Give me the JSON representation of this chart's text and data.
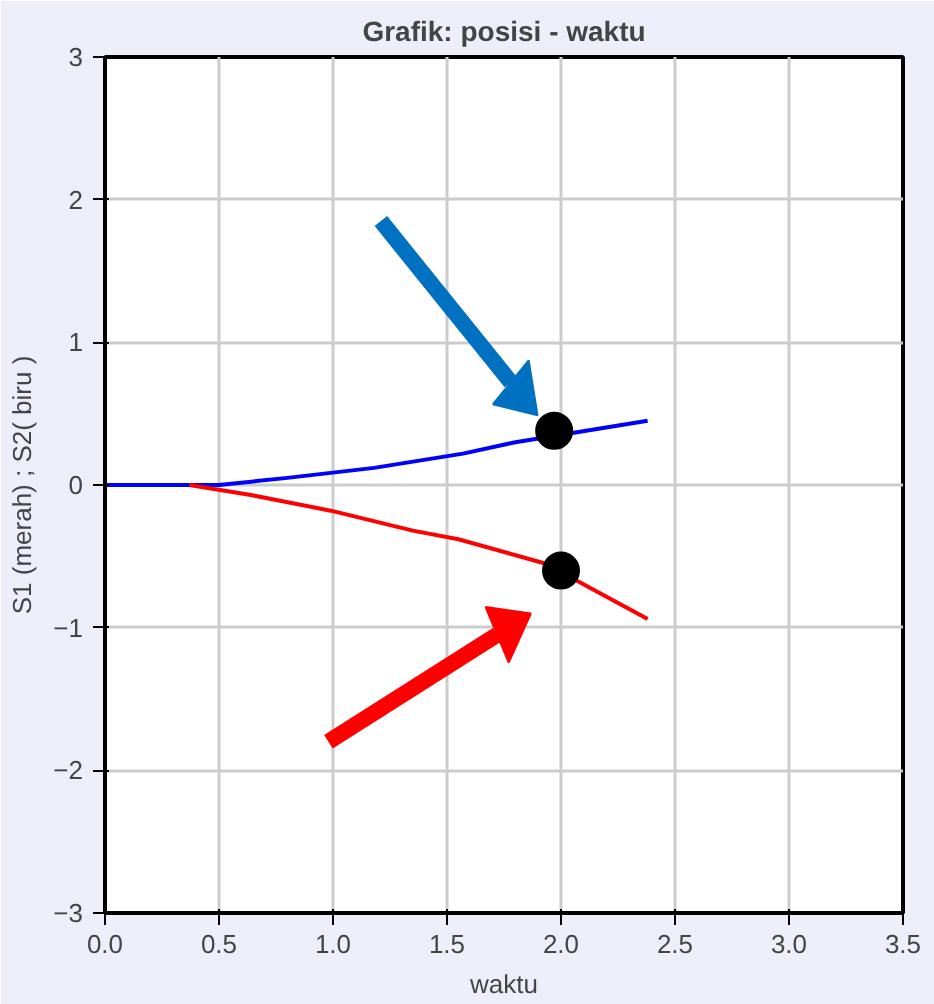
{
  "chart_data": {
    "type": "line",
    "title": "Grafik: posisi - waktu",
    "xlabel": "waktu",
    "ylabel": "S1 (merah) ; S2( biru )",
    "xlim": [
      0,
      3.5
    ],
    "ylim": [
      -3,
      3
    ],
    "xticks": [
      {
        "value": 0,
        "label": "0.0"
      },
      {
        "value": 0.5,
        "label": "0.5"
      },
      {
        "value": 1,
        "label": "1.0"
      },
      {
        "value": 1.5,
        "label": "1.5"
      },
      {
        "value": 2,
        "label": "2.0"
      },
      {
        "value": 2.5,
        "label": "2.5"
      },
      {
        "value": 3,
        "label": "3.0"
      },
      {
        "value": 3.5,
        "label": "3.5"
      }
    ],
    "yticks": [
      -3,
      -2,
      -1,
      0,
      1,
      2,
      3
    ],
    "grid": true,
    "series": [
      {
        "color": "#0000ff",
        "x": [
          0,
          0.5,
          0.8,
          1.18,
          1.57,
          1.8,
          2.38
        ],
        "values": [
          0,
          0,
          0.05,
          0.12,
          0.22,
          0.3,
          0.45
        ]
      },
      {
        "color": "#ff0000",
        "x": [
          0.37,
          0.64,
          0.99,
          1.35,
          1.55,
          1.93,
          2.38
        ],
        "values": [
          0,
          -0.07,
          -0.18,
          -0.32,
          -0.38,
          -0.55,
          -0.94
        ]
      },
      {
        "type": "scatter",
        "marker": "circle",
        "color": "#000000",
        "x": [
          1.97,
          2.0
        ],
        "values": [
          0.38,
          -0.6
        ]
      }
    ]
  }
}
